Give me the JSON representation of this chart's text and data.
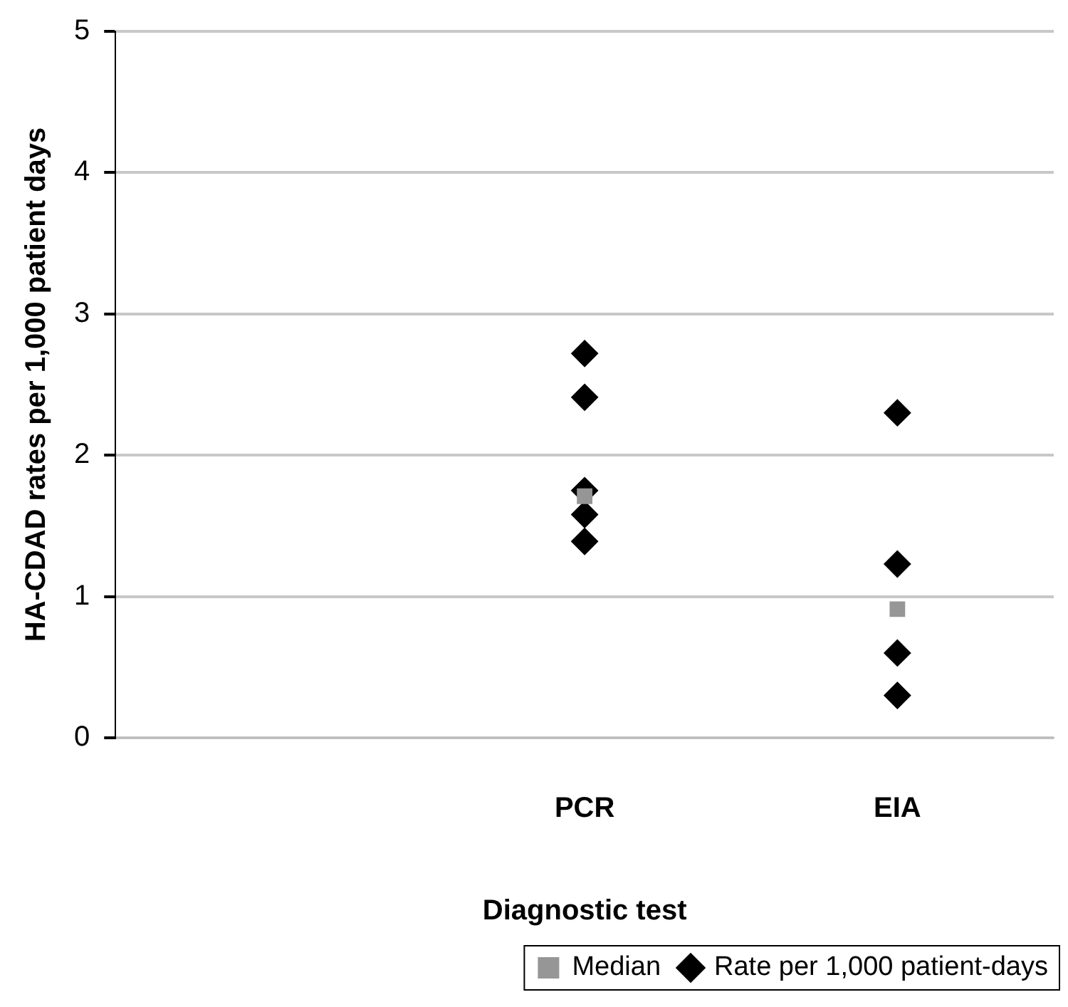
{
  "chart_data": {
    "type": "scatter",
    "xlabel": "Diagnostic test",
    "ylabel": "HA-CDAD rates per 1,000 patient days",
    "categories": [
      null,
      "PCR",
      "EIA"
    ],
    "series": [
      {
        "name": "Rate per 1,000 patient-days",
        "color": "#000000",
        "marker": "diamond",
        "x": [
          "PCR",
          "PCR",
          "PCR",
          "PCR",
          "PCR",
          "EIA",
          "EIA",
          "EIA",
          "EIA"
        ],
        "values": [
          2.72,
          2.41,
          1.75,
          1.58,
          1.39,
          2.3,
          1.23,
          0.6,
          0.3
        ]
      },
      {
        "name": "Median",
        "color": "#969696",
        "marker": "square",
        "x": [
          "PCR",
          "EIA"
        ],
        "values": [
          1.71,
          0.91
        ]
      }
    ],
    "ylim": [
      0,
      5
    ],
    "yticks": [
      0,
      1,
      2,
      3,
      4,
      5
    ],
    "grid": "y",
    "legend": "bottom"
  }
}
